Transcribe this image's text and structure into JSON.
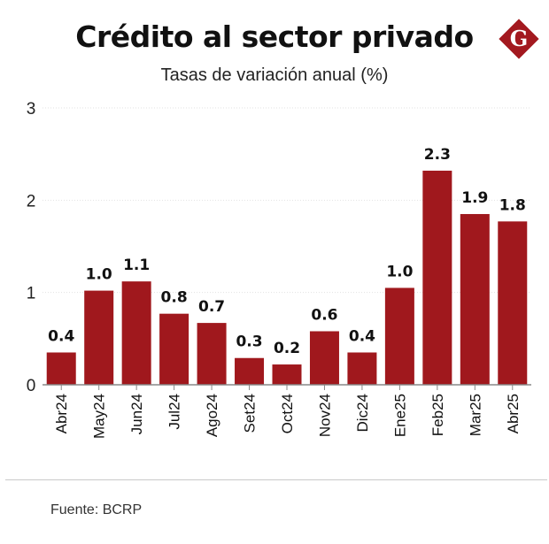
{
  "header": {
    "title": "Crédito al sector privado",
    "subtitle": "Tasas de variación anual (%)"
  },
  "logo": {
    "icon": "gestion-g-diamond-icon",
    "letter": "G",
    "color": "#a3191f"
  },
  "colors": {
    "bar": "#a0181d",
    "grid": "#e2e2e2",
    "axis": "#888888"
  },
  "chart_data": {
    "type": "bar",
    "title": "Crédito al sector privado",
    "subtitle": "Tasas de variación anual (%)",
    "xlabel": "",
    "ylabel": "",
    "ylim": [
      0,
      3
    ],
    "yticks": [
      0,
      1,
      2,
      3
    ],
    "categories": [
      "Abr24",
      "May24",
      "Jun24",
      "Jul24",
      "Ago24",
      "Set24",
      "Oct24",
      "Nov24",
      "Dic24",
      "Ene25",
      "Feb25",
      "Mar25",
      "Abr25"
    ],
    "values": [
      0.35,
      1.02,
      1.12,
      0.77,
      0.67,
      0.29,
      0.22,
      0.58,
      0.35,
      1.05,
      2.32,
      1.85,
      1.77
    ],
    "labels": [
      "0.4",
      "1.0",
      "1.1",
      "0.8",
      "0.7",
      "0.3",
      "0.2",
      "0.6",
      "0.4",
      "1.0",
      "2.3",
      "1.9",
      "1.8"
    ],
    "grid": true
  },
  "footer": {
    "source": "Fuente: BCRP"
  }
}
